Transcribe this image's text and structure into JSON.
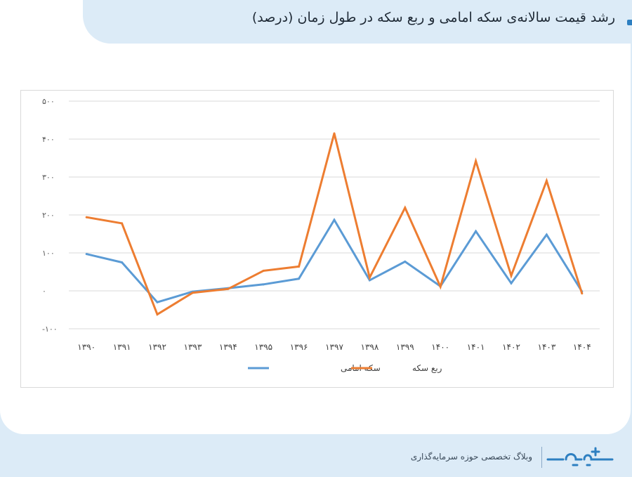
{
  "page": {
    "title": "رشد قیمت سالانه‌ی سکه امامی و ربع سکه در طول زمان (درصد)",
    "footer_text": "وبلاگ تخصصی حوزه سرمایه‌گذاری",
    "logo_icon": "sarmayeh-logo-icon"
  },
  "chart_data": {
    "type": "line",
    "title": "",
    "xlabel": "",
    "ylabel": "",
    "categories": [
      "۱۳۹۰",
      "۱۳۹۱",
      "۱۳۹۲",
      "۱۳۹۳",
      "۱۳۹۴",
      "۱۳۹۵",
      "۱۳۹۶",
      "۱۳۹۷",
      "۱۳۹۸",
      "۱۳۹۹",
      "۱۴۰۰",
      "۱۴۰۱",
      "۱۴۰۲",
      "۱۴۰۳",
      "۱۴۰۴"
    ],
    "yticks": [
      500,
      400,
      300,
      200,
      100,
      0,
      -100
    ],
    "ytick_labels": [
      "۵۰۰",
      "۴۰۰",
      "۳۰۰",
      "۲۰۰",
      "۱۰۰",
      "۰",
      "-۱۰۰"
    ],
    "ylim": [
      -100,
      500
    ],
    "grid": true,
    "legend_position": "bottom",
    "series": [
      {
        "name": "سکه امامی",
        "color": "#5b9bd5",
        "values": [
          97,
          75,
          -30,
          -2,
          7,
          17,
          32,
          187,
          28,
          77,
          12,
          157,
          20,
          148,
          -2
        ]
      },
      {
        "name": "ربع سکه",
        "color": "#ed7d31",
        "values": [
          194,
          178,
          -62,
          -5,
          5,
          53,
          64,
          415,
          35,
          219,
          11,
          342,
          40,
          290,
          -7
        ]
      }
    ]
  }
}
